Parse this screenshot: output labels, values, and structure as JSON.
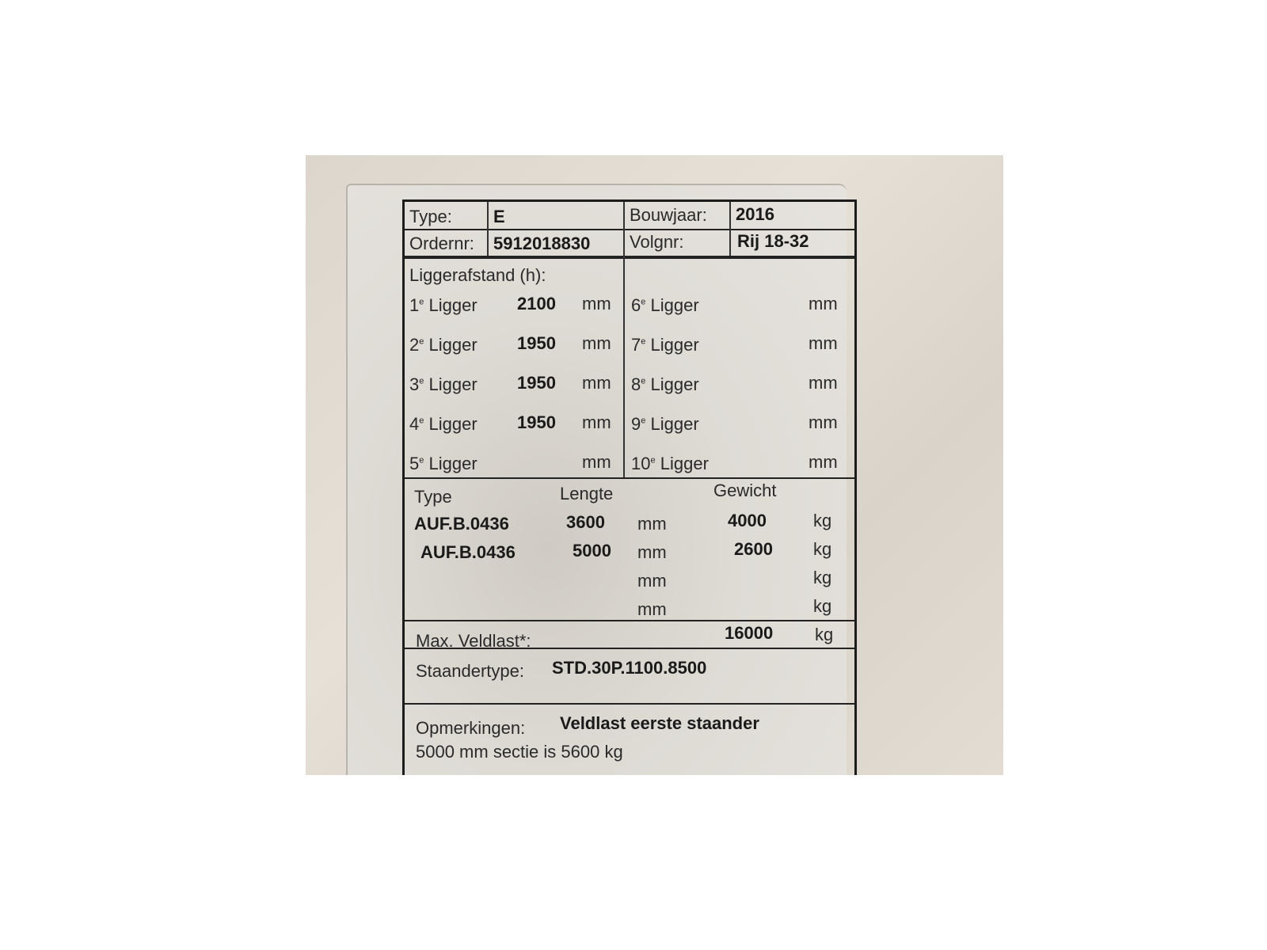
{
  "header": {
    "type_label": "Type:",
    "type_value": "E",
    "bouwjaar_label": "Bouwjaar:",
    "bouwjaar_value": "2016",
    "ordernr_label": "Ordernr:",
    "ordernr_value": "5912018830",
    "volgnr_label": "Volgnr:",
    "volgnr_value": "Rij 18-32"
  },
  "liggers": {
    "title": "Liggerafstand (h):",
    "unit": "mm",
    "suffix": "e",
    "word": "Ligger",
    "left": [
      {
        "n": "1",
        "value": "2100"
      },
      {
        "n": "2",
        "value": "1950"
      },
      {
        "n": "3",
        "value": "1950"
      },
      {
        "n": "4",
        "value": "1950"
      },
      {
        "n": "5",
        "value": ""
      }
    ],
    "right": [
      {
        "n": "6",
        "value": ""
      },
      {
        "n": "7",
        "value": ""
      },
      {
        "n": "8",
        "value": ""
      },
      {
        "n": "9",
        "value": ""
      },
      {
        "n": "10",
        "value": ""
      }
    ]
  },
  "beams": {
    "col_type": "Type",
    "col_lengte": "Lengte",
    "col_gewicht": "Gewicht",
    "len_unit": "mm",
    "weight_unit": "kg",
    "rows": [
      {
        "type": "AUF.B.0436",
        "lengte": "3600",
        "gewicht": "4000"
      },
      {
        "type": "AUF.B.0436",
        "lengte": "5000",
        "gewicht": "2600"
      },
      {
        "type": "",
        "lengte": "",
        "gewicht": ""
      },
      {
        "type": "",
        "lengte": "",
        "gewicht": ""
      }
    ]
  },
  "max_veldlast": {
    "label": "Max. Veldlast*:",
    "value": "16000",
    "unit": "kg"
  },
  "staandertype": {
    "label": "Staandertype:",
    "value": "STD.30P.1100.8500"
  },
  "opmerkingen": {
    "label": "Opmerkingen:",
    "line1": "Veldlast eerste staander",
    "line2": "5000 mm sectie is 5600 kg"
  }
}
